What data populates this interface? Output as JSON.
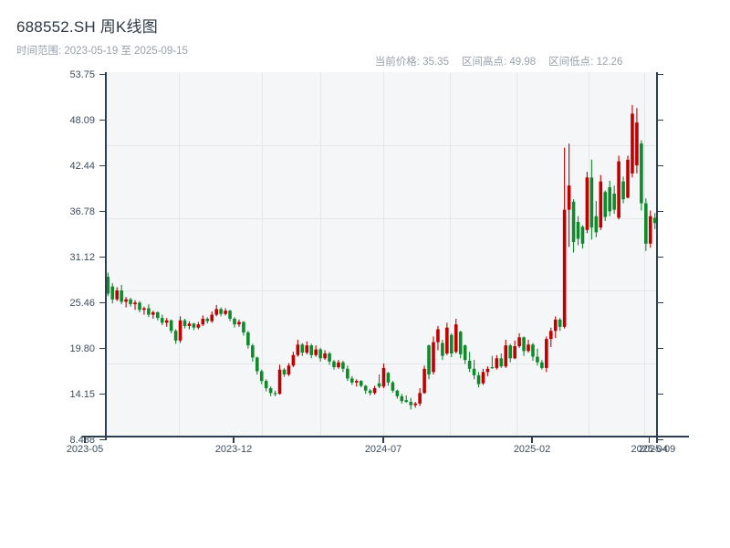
{
  "header": {
    "title": "688552.SH 周K线图",
    "subtitle": "时间范围: 2023-05-19 至 2025-09-15",
    "stats": [
      {
        "label": "当前价格:",
        "value": "35.35"
      },
      {
        "label": "区间高点:",
        "value": "49.98"
      },
      {
        "label": "区间低点:",
        "value": "12.26"
      }
    ]
  },
  "chart_data": {
    "type": "candlestick",
    "title": "688552.SH 周K线图",
    "symbol": "688552.SH",
    "period": "weekly",
    "date_range_start": "2023-05-19",
    "date_range_end": "2025-09-15",
    "current_price": 35.35,
    "range_high": 49.98,
    "range_low": 12.26,
    "grid": true,
    "convention": "red = up week, green = down week (CN convention)",
    "colors": {
      "up": "#c00000",
      "down": "#0f8a2b",
      "axis": "#2c3e50",
      "plot_bg": "#f5f6f8",
      "gridline": "#e4e7ea"
    },
    "y_axis": {
      "range": [
        8.488,
        53.75
      ],
      "tick_labels": [
        "53.75",
        "48.09",
        "42.44",
        "36.78",
        "31.12",
        "25.46",
        "19.80",
        "14.15",
        "8.488"
      ]
    },
    "x_axis": {
      "tick_labels": [
        "2023-05",
        "2023-12",
        "2024-07",
        "2025-02",
        "2025-04",
        "2025-09"
      ]
    },
    "columns": [
      "open",
      "high",
      "low",
      "close"
    ],
    "candles": [
      [
        28.7,
        29.2,
        26.3,
        26.6
      ],
      [
        27.5,
        27.9,
        25.4,
        25.9
      ],
      [
        25.9,
        27.4,
        25.7,
        27.0
      ],
      [
        27.0,
        27.7,
        25.3,
        25.6
      ],
      [
        25.6,
        26.2,
        24.9,
        25.9
      ],
      [
        25.9,
        26.1,
        25.0,
        25.3
      ],
      [
        25.3,
        25.8,
        24.6,
        25.5
      ],
      [
        25.5,
        25.7,
        24.3,
        24.6
      ],
      [
        24.6,
        25.0,
        24.0,
        24.8
      ],
      [
        24.8,
        25.3,
        23.7,
        24.0
      ],
      [
        24.0,
        24.5,
        23.5,
        24.3
      ],
      [
        24.3,
        24.4,
        23.3,
        23.6
      ],
      [
        23.6,
        24.0,
        22.7,
        23.0
      ],
      [
        23.0,
        23.6,
        22.5,
        23.3
      ],
      [
        23.3,
        23.4,
        21.7,
        22.0
      ],
      [
        22.0,
        22.2,
        20.4,
        20.8
      ],
      [
        20.8,
        23.8,
        20.5,
        23.3
      ],
      [
        23.3,
        23.5,
        22.3,
        22.6
      ],
      [
        22.6,
        23.2,
        22.2,
        22.9
      ],
      [
        22.9,
        23.0,
        22.1,
        22.4
      ],
      [
        22.4,
        23.1,
        22.2,
        22.8
      ],
      [
        22.8,
        23.9,
        22.6,
        23.5
      ],
      [
        23.5,
        23.7,
        22.9,
        23.2
      ],
      [
        23.2,
        24.4,
        23.0,
        24.0
      ],
      [
        24.0,
        25.2,
        23.8,
        24.7
      ],
      [
        24.7,
        24.9,
        23.8,
        24.1
      ],
      [
        24.1,
        24.8,
        23.9,
        24.5
      ],
      [
        24.5,
        24.6,
        23.2,
        23.5
      ],
      [
        23.5,
        23.7,
        22.4,
        22.8
      ],
      [
        22.8,
        23.4,
        22.5,
        23.1
      ],
      [
        23.1,
        23.2,
        21.4,
        21.8
      ],
      [
        21.8,
        22.0,
        19.8,
        20.2
      ],
      [
        20.2,
        20.4,
        18.2,
        18.7
      ],
      [
        18.7,
        18.8,
        16.6,
        17.0
      ],
      [
        17.0,
        17.2,
        15.4,
        15.8
      ],
      [
        15.8,
        16.0,
        14.5,
        14.9
      ],
      [
        14.9,
        15.1,
        13.9,
        14.3
      ],
      [
        14.3,
        14.6,
        13.9,
        14.2
      ],
      [
        14.2,
        17.8,
        14.1,
        17.2
      ],
      [
        17.2,
        17.4,
        16.3,
        16.6
      ],
      [
        16.6,
        18.0,
        16.4,
        17.7
      ],
      [
        17.7,
        19.4,
        17.5,
        19.0
      ],
      [
        19.0,
        20.9,
        18.8,
        20.3
      ],
      [
        20.3,
        20.5,
        18.9,
        19.3
      ],
      [
        19.3,
        20.7,
        19.1,
        20.2
      ],
      [
        20.2,
        20.4,
        18.6,
        19.0
      ],
      [
        19.0,
        20.2,
        18.8,
        19.7
      ],
      [
        19.7,
        19.9,
        18.2,
        18.6
      ],
      [
        18.6,
        19.6,
        18.4,
        19.2
      ],
      [
        19.2,
        19.4,
        17.8,
        18.2
      ],
      [
        18.2,
        18.4,
        17.2,
        17.5
      ],
      [
        17.5,
        18.4,
        17.3,
        18.1
      ],
      [
        18.1,
        18.3,
        16.9,
        17.3
      ],
      [
        17.3,
        17.7,
        15.8,
        16.1
      ],
      [
        16.1,
        16.4,
        15.3,
        15.6
      ],
      [
        15.6,
        16.0,
        15.1,
        15.8
      ],
      [
        15.8,
        15.9,
        15.0,
        15.2
      ],
      [
        15.2,
        15.3,
        14.2,
        14.6
      ],
      [
        14.6,
        14.8,
        14.0,
        14.3
      ],
      [
        14.3,
        15.2,
        14.1,
        14.9
      ],
      [
        15.5,
        16.6,
        14.9,
        15.1
      ],
      [
        15.1,
        17.95,
        14.9,
        17.4
      ],
      [
        16.8,
        16.9,
        15.2,
        15.6
      ],
      [
        15.6,
        15.8,
        14.35,
        14.6
      ],
      [
        14.6,
        14.7,
        13.6,
        13.9
      ],
      [
        13.9,
        14.2,
        13.0,
        13.3
      ],
      [
        13.4,
        14.0,
        13.1,
        13.2
      ],
      [
        13.2,
        13.7,
        12.26,
        12.8
      ],
      [
        12.8,
        13.2,
        12.5,
        13.0
      ],
      [
        13.0,
        14.9,
        12.7,
        14.3
      ],
      [
        14.3,
        17.7,
        14.2,
        17.3
      ],
      [
        20.2,
        20.3,
        16.0,
        16.6
      ],
      [
        16.9,
        21.3,
        16.6,
        20.6
      ],
      [
        20.6,
        22.6,
        19.6,
        22.2
      ],
      [
        20.5,
        20.9,
        18.4,
        18.9
      ],
      [
        19.2,
        23.0,
        19.0,
        22.4
      ],
      [
        21.5,
        21.7,
        18.75,
        19.2
      ],
      [
        19.4,
        23.5,
        19.2,
        22.8
      ],
      [
        21.9,
        22.0,
        18.6,
        19.1
      ],
      [
        20.2,
        20.3,
        17.9,
        18.4
      ],
      [
        18.3,
        19.4,
        16.9,
        17.3
      ],
      [
        17.3,
        18.4,
        16.0,
        16.5
      ],
      [
        16.5,
        16.9,
        15.0,
        15.4
      ],
      [
        15.5,
        17.3,
        15.3,
        16.9
      ],
      [
        16.9,
        17.6,
        16.4,
        17.3
      ],
      [
        17.5,
        18.9,
        17.3,
        17.4
      ],
      [
        17.4,
        19.0,
        17.2,
        18.6
      ],
      [
        18.6,
        19.2,
        17.4,
        17.6
      ],
      [
        17.6,
        20.9,
        17.4,
        20.2
      ],
      [
        20.2,
        20.4,
        18.1,
        18.6
      ],
      [
        18.6,
        20.8,
        18.5,
        20.1
      ],
      [
        20.1,
        21.7,
        19.9,
        21.2
      ],
      [
        21.2,
        21.3,
        18.9,
        19.5
      ],
      [
        19.5,
        20.9,
        19.3,
        20.3
      ],
      [
        20.3,
        20.5,
        18.3,
        18.8
      ],
      [
        18.8,
        19.8,
        17.7,
        18.1
      ],
      [
        18.1,
        18.4,
        17.2,
        17.4
      ],
      [
        17.4,
        21.3,
        16.9,
        21.0
      ],
      [
        21.0,
        22.4,
        20.0,
        22.0
      ],
      [
        22.0,
        23.8,
        21.1,
        23.4
      ],
      [
        23.4,
        23.6,
        22.0,
        22.5
      ],
      [
        22.5,
        44.7,
        22.3,
        37.0
      ],
      [
        37.0,
        45.2,
        32.4,
        40.0
      ],
      [
        38.0,
        38.3,
        31.7,
        33.0
      ],
      [
        35.5,
        36.2,
        32.6,
        33.4
      ],
      [
        34.9,
        35.1,
        32.2,
        32.8
      ],
      [
        34.5,
        41.7,
        34.1,
        41.0
      ],
      [
        41.0,
        43.2,
        33.3,
        34.8
      ],
      [
        36.2,
        38.1,
        33.6,
        34.2
      ],
      [
        34.8,
        41.3,
        34.5,
        40.5
      ],
      [
        39.2,
        39.4,
        35.6,
        36.1
      ],
      [
        39.8,
        40.6,
        36.2,
        36.8
      ],
      [
        39.0,
        40.0,
        36.5,
        37.0
      ],
      [
        36.0,
        43.7,
        35.8,
        43.0
      ],
      [
        40.5,
        41.1,
        37.8,
        38.3
      ],
      [
        38.5,
        43.7,
        38.4,
        43.2
      ],
      [
        41.5,
        49.98,
        41.0,
        48.9
      ],
      [
        42.5,
        49.6,
        41.5,
        47.8
      ],
      [
        45.2,
        45.6,
        36.9,
        37.8
      ],
      [
        37.8,
        38.4,
        31.9,
        32.8
      ],
      [
        32.8,
        36.9,
        32.3,
        36.2
      ],
      [
        36.0,
        36.6,
        34.6,
        35.35
      ]
    ]
  }
}
